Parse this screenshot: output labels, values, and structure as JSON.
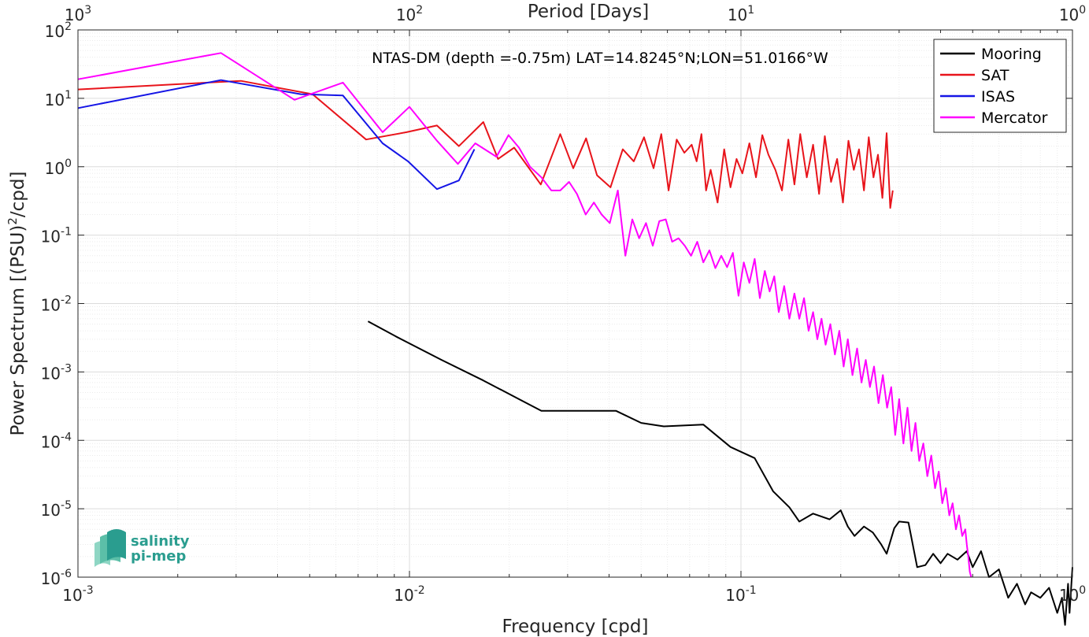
{
  "chart_data": {
    "type": "line",
    "x_scale": "log",
    "y_scale": "log",
    "xlim": [
      0.001,
      1
    ],
    "ylim": [
      1e-06,
      100
    ],
    "grid": true,
    "xlabel": "Frequency [cpd]",
    "ylabel": "Power Spectrum [(PSU)²/cpd]",
    "top_axis_label": "Period [Days]",
    "annotation": "NTAS-DM (depth =-0.75m) LAT=14.8245°N;LON=51.0166°W",
    "legend_position": "top-right",
    "x_ticks": [
      {
        "value": 0.001,
        "base": "10",
        "exp": "-3"
      },
      {
        "value": 0.01,
        "base": "10",
        "exp": "-2"
      },
      {
        "value": 0.1,
        "base": "10",
        "exp": "-1"
      },
      {
        "value": 1,
        "base": "10",
        "exp": "0"
      }
    ],
    "top_ticks": [
      {
        "value": 0.001,
        "base": "10",
        "exp": "3"
      },
      {
        "value": 0.01,
        "base": "10",
        "exp": "2"
      },
      {
        "value": 0.1,
        "base": "10",
        "exp": "1"
      },
      {
        "value": 1,
        "base": "10",
        "exp": "0"
      }
    ],
    "y_ticks": [
      {
        "value": 100,
        "base": "10",
        "exp": "2"
      },
      {
        "value": 10,
        "base": "10",
        "exp": "1"
      },
      {
        "value": 1,
        "base": "10",
        "exp": "0"
      },
      {
        "value": 0.1,
        "base": "10",
        "exp": "-1"
      },
      {
        "value": 0.01,
        "base": "10",
        "exp": "-2"
      },
      {
        "value": 0.001,
        "base": "10",
        "exp": "-3"
      },
      {
        "value": 0.0001,
        "base": "10",
        "exp": "-4"
      },
      {
        "value": 1e-05,
        "base": "10",
        "exp": "-5"
      },
      {
        "value": 1e-06,
        "base": "10",
        "exp": "-6"
      }
    ],
    "series": [
      {
        "name": "Mooring",
        "color": "#000000",
        "x": [
          0.0075,
          0.0091,
          0.0125,
          0.0167,
          0.025,
          0.042,
          0.05,
          0.0585,
          0.077,
          0.093,
          0.11,
          0.125,
          0.14,
          0.15,
          0.165,
          0.185,
          0.2,
          0.21,
          0.22,
          0.235,
          0.25,
          0.265,
          0.275,
          0.29,
          0.3,
          0.32,
          0.34,
          0.36,
          0.38,
          0.4,
          0.42,
          0.45,
          0.48,
          0.5,
          0.53,
          0.56,
          0.6,
          0.64,
          0.68,
          0.72,
          0.75,
          0.8,
          0.85,
          0.9,
          0.93,
          0.95,
          0.97,
          0.98,
          1.0
        ],
        "y": [
          0.0055,
          0.0033,
          0.0015,
          0.00075,
          0.00027,
          0.00027,
          0.00018,
          0.00016,
          0.00017,
          8e-05,
          5.5e-05,
          1.8e-05,
          1.05e-05,
          6.5e-06,
          8.5e-06,
          7e-06,
          9.5e-06,
          5.5e-06,
          4e-06,
          5.5e-06,
          4.5e-06,
          3e-06,
          2.2e-06,
          5.2e-06,
          6.5e-06,
          6.3e-06,
          1.4e-06,
          1.5e-06,
          2.2e-06,
          1.6e-06,
          2.2e-06,
          1.8e-06,
          2.4e-06,
          1.4e-06,
          2.4e-06,
          1e-06,
          1.3e-06,
          5e-07,
          8e-07,
          4e-07,
          6e-07,
          5e-07,
          7e-07,
          3e-07,
          5e-07,
          2e-07,
          8e-07,
          3e-07,
          1.4e-06
        ]
      },
      {
        "name": "SAT",
        "color": "#e8141b",
        "x": [
          0.001,
          0.0031,
          0.0051,
          0.0074,
          0.0098,
          0.0121,
          0.0141,
          0.0167,
          0.0185,
          0.0207,
          0.0249,
          0.0285,
          0.0312,
          0.0341,
          0.0368,
          0.0404,
          0.044,
          0.0475,
          0.051,
          0.0545,
          0.0575,
          0.0605,
          0.064,
          0.0675,
          0.071,
          0.0735,
          0.076,
          0.0785,
          0.081,
          0.085,
          0.089,
          0.093,
          0.097,
          0.101,
          0.106,
          0.111,
          0.116,
          0.121,
          0.127,
          0.133,
          0.139,
          0.145,
          0.151,
          0.158,
          0.165,
          0.172,
          0.179,
          0.187,
          0.195,
          0.203,
          0.211,
          0.219,
          0.227,
          0.235,
          0.243,
          0.251,
          0.259,
          0.267,
          0.275,
          0.282,
          0.287
        ],
        "y": [
          13.5,
          18,
          11.5,
          2.5,
          3.2,
          4.0,
          2.0,
          4.5,
          1.3,
          1.9,
          0.55,
          3.0,
          0.95,
          2.6,
          0.75,
          0.5,
          1.8,
          1.2,
          2.7,
          0.95,
          3.0,
          0.45,
          2.5,
          1.6,
          2.1,
          1.2,
          3.0,
          0.45,
          0.9,
          0.3,
          1.8,
          0.5,
          1.3,
          0.8,
          2.2,
          0.7,
          2.9,
          1.5,
          0.9,
          0.45,
          2.5,
          0.55,
          3.0,
          0.7,
          2.1,
          0.4,
          2.8,
          0.6,
          1.3,
          0.3,
          2.4,
          0.9,
          1.8,
          0.45,
          2.7,
          0.7,
          1.5,
          0.35,
          3.1,
          0.25,
          0.45
        ]
      },
      {
        "name": "ISAS",
        "color": "#1515e6",
        "x": [
          0.001,
          0.0027,
          0.0047,
          0.0063,
          0.0083,
          0.0099,
          0.0121,
          0.0141,
          0.0157
        ],
        "y": [
          7.2,
          18.5,
          11.5,
          11,
          2.2,
          1.2,
          0.47,
          0.63,
          1.8
        ]
      },
      {
        "name": "Mercator",
        "color": "#ff00ff",
        "x": [
          0.001,
          0.0027,
          0.0045,
          0.0063,
          0.0083,
          0.01,
          0.0121,
          0.014,
          0.0158,
          0.0183,
          0.0199,
          0.0214,
          0.0231,
          0.025,
          0.0268,
          0.0285,
          0.0303,
          0.032,
          0.034,
          0.036,
          0.038,
          0.0402,
          0.0425,
          0.0448,
          0.047,
          0.0493,
          0.0517,
          0.0542,
          0.0567,
          0.0593,
          0.062,
          0.0648,
          0.0677,
          0.0707,
          0.0738,
          0.077,
          0.0803,
          0.0837,
          0.0872,
          0.0908,
          0.0945,
          0.0983,
          0.102,
          0.106,
          0.11,
          0.114,
          0.118,
          0.122,
          0.126,
          0.13,
          0.135,
          0.14,
          0.145,
          0.15,
          0.155,
          0.16,
          0.165,
          0.17,
          0.175,
          0.18,
          0.186,
          0.192,
          0.198,
          0.204,
          0.21,
          0.217,
          0.224,
          0.231,
          0.238,
          0.245,
          0.252,
          0.26,
          0.268,
          0.276,
          0.284,
          0.292,
          0.3,
          0.309,
          0.318,
          0.327,
          0.336,
          0.345,
          0.355,
          0.365,
          0.375,
          0.385,
          0.395,
          0.405,
          0.415,
          0.425,
          0.435,
          0.445,
          0.455,
          0.465,
          0.475,
          0.48,
          0.485,
          0.49,
          0.495
        ],
        "y": [
          19,
          46,
          9.5,
          17,
          3.2,
          7.5,
          2.4,
          1.1,
          2.2,
          1.4,
          2.9,
          1.9,
          1.0,
          0.7,
          0.45,
          0.45,
          0.6,
          0.4,
          0.2,
          0.3,
          0.2,
          0.15,
          0.45,
          0.05,
          0.17,
          0.09,
          0.15,
          0.07,
          0.16,
          0.17,
          0.08,
          0.09,
          0.07,
          0.05,
          0.08,
          0.04,
          0.06,
          0.033,
          0.05,
          0.034,
          0.055,
          0.013,
          0.04,
          0.02,
          0.045,
          0.012,
          0.03,
          0.015,
          0.025,
          0.0075,
          0.018,
          0.006,
          0.014,
          0.006,
          0.012,
          0.004,
          0.0075,
          0.003,
          0.006,
          0.0025,
          0.005,
          0.0018,
          0.004,
          0.0012,
          0.003,
          0.0009,
          0.0022,
          0.0007,
          0.0015,
          0.0006,
          0.0012,
          0.00035,
          0.0009,
          0.0003,
          0.0006,
          0.00012,
          0.0004,
          9e-05,
          0.0003,
          7e-05,
          0.00018,
          5e-05,
          9e-05,
          3e-05,
          6e-05,
          2e-05,
          3.5e-05,
          1.2e-05,
          2e-05,
          8e-06,
          1.2e-05,
          5e-06,
          8e-06,
          4e-06,
          5e-06,
          3e-06,
          2e-06,
          1.2e-06,
          1e-06
        ]
      }
    ]
  },
  "logo": {
    "line1": "salinity",
    "line2": "pi-mep",
    "colors": [
      "#8fd6c4",
      "#5cbfa8",
      "#2a9d8f"
    ]
  }
}
